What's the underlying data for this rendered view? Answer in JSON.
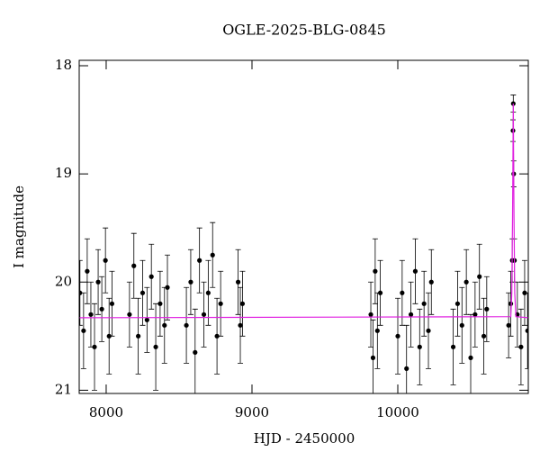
{
  "chart_data": {
    "type": "scatter",
    "title": "OGLE-2025-BLG-0845",
    "x_label": "HJD - 2450000",
    "y_label": "I magnitude",
    "xlim": [
      7815,
      10895
    ],
    "ylim": [
      17.95,
      21.03
    ],
    "y_inverted": true,
    "xticks": [
      8000,
      9000,
      10000
    ],
    "yticks": [
      18,
      19,
      20,
      21
    ],
    "series": [
      {
        "color": "#000000",
        "x": [
          7820,
          7845,
          7870,
          7895,
          7920,
          7945,
          7970,
          7995,
          8020,
          8040,
          8160,
          8190,
          8220,
          8250,
          8280,
          8310,
          8340,
          8370,
          8400,
          8420,
          8550,
          8580,
          8610,
          8640,
          8670,
          8700,
          8730,
          8760,
          8785,
          8905,
          8920,
          8935,
          9815,
          9830,
          9845,
          9860,
          9880,
          10000,
          10030,
          10060,
          10090,
          10120,
          10150,
          10180,
          10210,
          10230,
          10380,
          10410,
          10440,
          10470,
          10500,
          10530,
          10560,
          10590,
          10610,
          10760,
          10775,
          10785,
          10790,
          10792,
          10795,
          10800,
          10820,
          10845,
          10870,
          10890
        ],
        "values": [
          20.1,
          20.45,
          19.9,
          20.3,
          20.6,
          20.0,
          20.25,
          19.8,
          20.5,
          20.2,
          20.3,
          19.85,
          20.5,
          20.1,
          20.35,
          19.95,
          20.6,
          20.2,
          20.4,
          20.05,
          20.4,
          20.0,
          20.65,
          19.8,
          20.3,
          20.1,
          19.75,
          20.5,
          20.2,
          20.0,
          20.4,
          20.2,
          20.3,
          20.7,
          19.9,
          20.45,
          20.1,
          20.5,
          20.1,
          20.8,
          20.3,
          19.9,
          20.6,
          20.2,
          20.45,
          20.0,
          20.6,
          20.2,
          20.4,
          20.0,
          20.7,
          20.3,
          19.95,
          20.5,
          20.25,
          20.4,
          20.2,
          19.8,
          18.6,
          18.35,
          19.0,
          19.8,
          20.3,
          20.6,
          20.1,
          20.45
        ],
        "errors": [
          0.3,
          0.35,
          0.3,
          0.3,
          0.4,
          0.3,
          0.3,
          0.3,
          0.35,
          0.3,
          0.3,
          0.3,
          0.35,
          0.3,
          0.3,
          0.3,
          0.4,
          0.3,
          0.35,
          0.3,
          0.35,
          0.3,
          0.4,
          0.3,
          0.3,
          0.3,
          0.3,
          0.35,
          0.3,
          0.3,
          0.35,
          0.3,
          0.3,
          0.35,
          0.3,
          0.35,
          0.3,
          0.35,
          0.3,
          0.4,
          0.3,
          0.3,
          0.35,
          0.3,
          0.35,
          0.3,
          0.35,
          0.3,
          0.35,
          0.3,
          0.4,
          0.3,
          0.3,
          0.35,
          0.3,
          0.3,
          0.3,
          0.2,
          0.1,
          0.08,
          0.12,
          0.2,
          0.3,
          0.35,
          0.3,
          0.35
        ]
      },
      {
        "color": "#e020e0",
        "line": true,
        "x": [
          7815,
          10775,
          10782,
          10787,
          10790,
          10792,
          10794,
          10797,
          10802,
          10810,
          10895
        ],
        "values": [
          20.33,
          20.32,
          20.1,
          19.4,
          18.8,
          18.35,
          18.8,
          19.4,
          20.1,
          20.32,
          20.33
        ]
      }
    ]
  }
}
